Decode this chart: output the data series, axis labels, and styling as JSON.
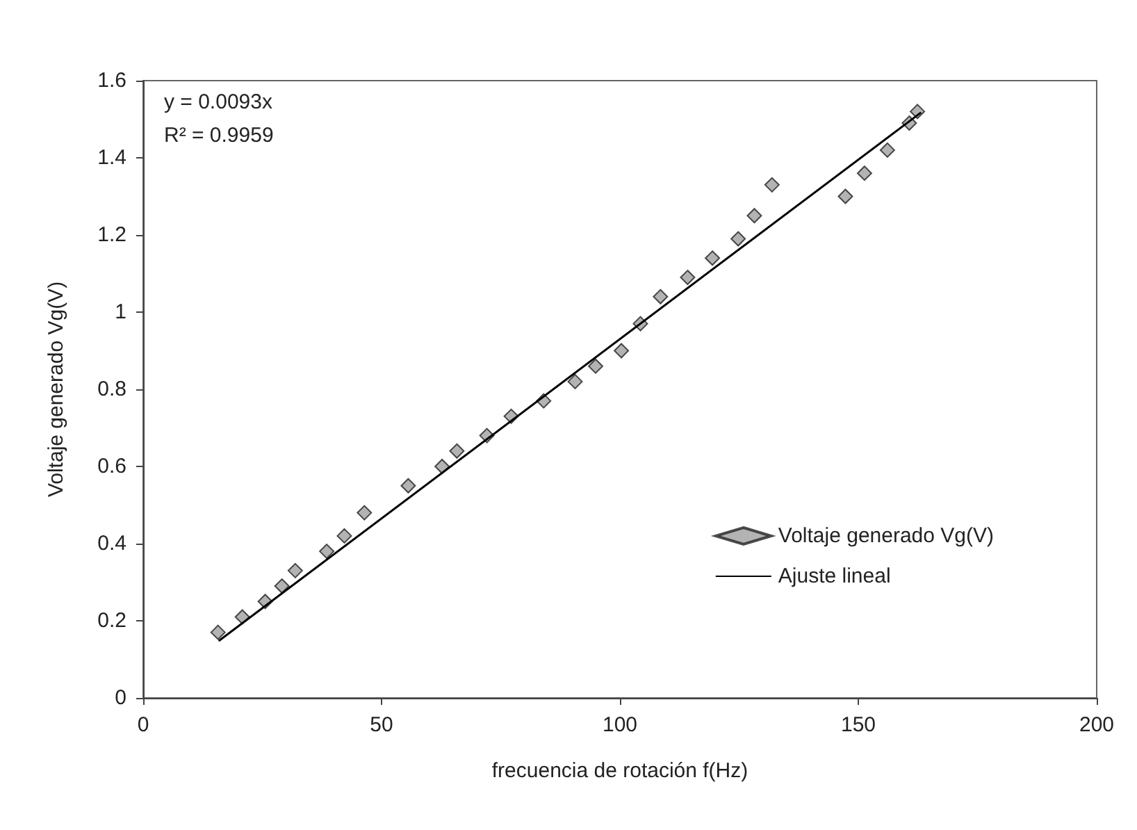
{
  "chart_data": {
    "type": "scatter",
    "xlabel": "frecuencia de rotación f(Hz)",
    "ylabel": "Voltaje generado Vg(V)",
    "annotations": [
      "y = 0.0093x",
      "R² = 0.9959"
    ],
    "xlim": [
      0,
      200
    ],
    "xticks": [
      0,
      50,
      100,
      150,
      200
    ],
    "ylim": [
      0,
      1.6
    ],
    "yticks": [
      0,
      0.2,
      0.4,
      0.6,
      0.8,
      1,
      1.2,
      1.4,
      1.6
    ],
    "grid": false,
    "legend": "bottom right",
    "series": [
      {
        "name": "Voltaje generado Vg(V)",
        "marker": "diamond",
        "color": "#a0a0a0",
        "x": [
          15.7,
          20.8,
          25.6,
          29.1,
          31.9,
          38.5,
          42.2,
          46.4,
          55.6,
          62.7,
          65.8,
          72.1,
          77.2,
          84,
          90.6,
          94.9,
          100.3,
          104.3,
          108.5,
          114.2,
          119.4,
          124.8,
          128.2,
          131.9,
          147.3,
          151.3,
          156.1,
          160.7,
          162.4
        ],
        "values": [
          0.17,
          0.21,
          0.25,
          0.29,
          0.33,
          0.38,
          0.42,
          0.48,
          0.55,
          0.6,
          0.64,
          0.68,
          0.73,
          0.77,
          0.82,
          0.86,
          0.9,
          0.97,
          1.04,
          1.09,
          1.14,
          1.19,
          1.25,
          1.33,
          1.3,
          1.36,
          1.42,
          1.49,
          1.52
        ]
      },
      {
        "name": "Ajuste lineal",
        "type": "line",
        "marker": "none",
        "color": "#000000",
        "x": [
          16,
          163
        ],
        "values": [
          0.149,
          1.516
        ]
      }
    ]
  }
}
